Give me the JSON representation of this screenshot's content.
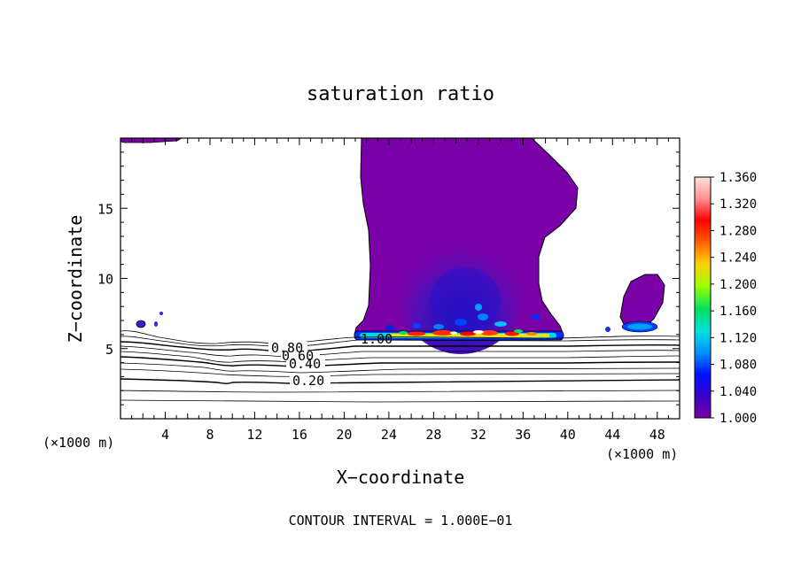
{
  "chart_data": {
    "type": "contour",
    "title": "saturation ratio",
    "xlabel": "X−coordinate",
    "ylabel": "Z−coordinate",
    "x_unit_left": "(×1000 m)",
    "x_unit_right": "(×1000 m)",
    "xlim": [
      0,
      50
    ],
    "ylim": [
      0,
      20
    ],
    "x_ticks": [
      4,
      8,
      12,
      16,
      20,
      24,
      28,
      32,
      36,
      40,
      44,
      48
    ],
    "y_ticks": [
      5,
      10,
      15
    ],
    "contour_labels": [
      "1.00",
      "0.80",
      "0.60",
      "0.40",
      "0.20"
    ],
    "colorbar": {
      "min": 1.0,
      "max": 1.36,
      "ticks": [
        "1.360",
        "1.320",
        "1.280",
        "1.240",
        "1.200",
        "1.160",
        "1.120",
        "1.080",
        "1.040",
        "1.000"
      ],
      "colors": [
        "#7a00a8",
        "#3a00c8",
        "#0010ff",
        "#0090ff",
        "#00e0e0",
        "#00e060",
        "#a0ff00",
        "#ffd000",
        "#ff6000",
        "#ff0000",
        "#ff9090",
        "#ffe0e0"
      ]
    },
    "footer": "CONTOUR INTERVAL = 1.000E−01"
  }
}
